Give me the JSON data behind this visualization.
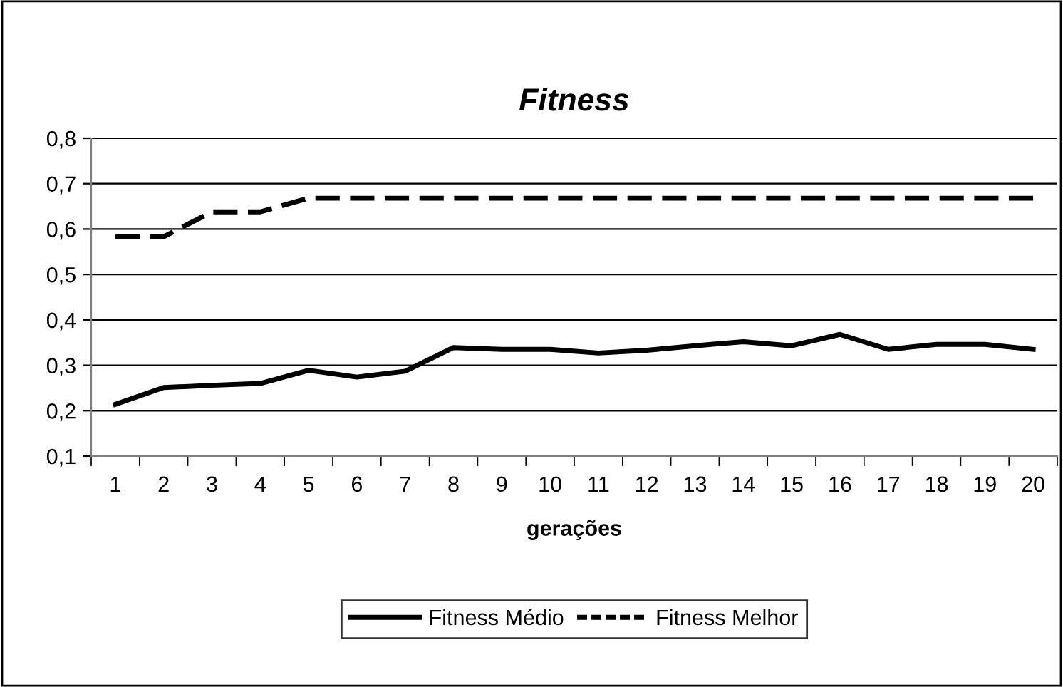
{
  "chart_data": {
    "type": "line",
    "title": "Fitness",
    "xlabel": "gerações",
    "categories": [
      "1",
      "2",
      "3",
      "4",
      "5",
      "6",
      "7",
      "8",
      "9",
      "10",
      "11",
      "12",
      "13",
      "14",
      "15",
      "16",
      "17",
      "18",
      "19",
      "20"
    ],
    "series": [
      {
        "name": "Fitness Médio",
        "color": "#000000",
        "line_style": "solid",
        "values": [
          0.214,
          0.251,
          0.256,
          0.26,
          0.289,
          0.274,
          0.287,
          0.339,
          0.335,
          0.335,
          0.327,
          0.333,
          0.343,
          0.352,
          0.343,
          0.368,
          0.335,
          0.346,
          0.346,
          0.335
        ]
      },
      {
        "name": "Fitness Melhor",
        "color": "#000000",
        "line_style": "dashed",
        "values": [
          0.583,
          0.583,
          0.638,
          0.638,
          0.668,
          0.668,
          0.668,
          0.668,
          0.668,
          0.668,
          0.668,
          0.668,
          0.668,
          0.668,
          0.668,
          0.668,
          0.668,
          0.668,
          0.668,
          0.668
        ]
      }
    ],
    "ylim": [
      0.1,
      0.8
    ],
    "yticks": [
      {
        "value": 0.1,
        "label": "0,1"
      },
      {
        "value": 0.2,
        "label": "0,2"
      },
      {
        "value": 0.3,
        "label": "0,3"
      },
      {
        "value": 0.4,
        "label": "0,4"
      },
      {
        "value": 0.5,
        "label": "0,5"
      },
      {
        "value": 0.6,
        "label": "0,6"
      },
      {
        "value": 0.7,
        "label": "0,7"
      },
      {
        "value": 0.8,
        "label": "0,8"
      }
    ],
    "grid": "y",
    "legend": "bottom",
    "marker": "none"
  }
}
